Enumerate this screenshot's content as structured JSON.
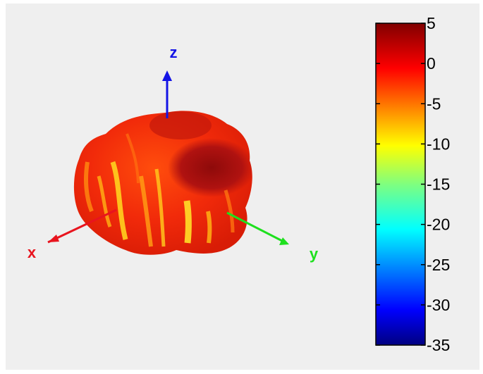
{
  "chart_data": {
    "type": "heatmap",
    "subtype": "3d-radiation-pattern",
    "title": "",
    "axes": [
      {
        "name": "x",
        "color": "#e8141e"
      },
      {
        "name": "y",
        "color": "#1ee01e"
      },
      {
        "name": "z",
        "color": "#1414e6"
      }
    ],
    "colorbar": {
      "ticks": [
        5,
        0,
        -5,
        -10,
        -15,
        -20,
        -25,
        -30,
        -35
      ],
      "range": [
        -35,
        5
      ],
      "colormap": "jet",
      "orientation": "vertical",
      "placement": "right"
    },
    "pattern_value_range": [
      -10,
      5
    ]
  }
}
